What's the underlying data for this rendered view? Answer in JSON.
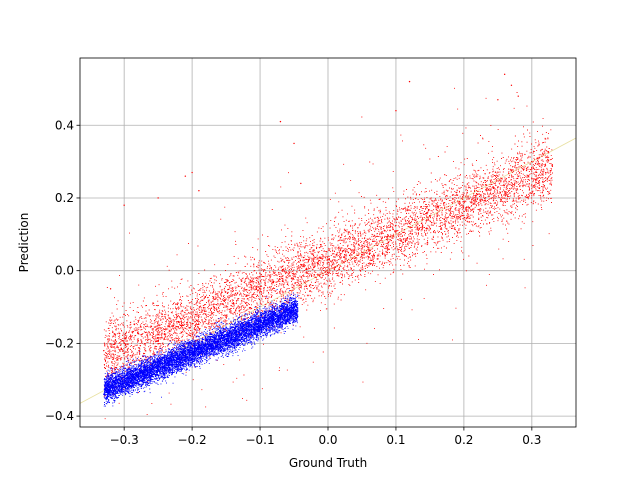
{
  "chart_data": {
    "type": "scatter",
    "xlabel": "Ground Truth",
    "ylabel": "Prediction",
    "xlim": [
      -0.365,
      0.365
    ],
    "ylim": [
      -0.43,
      0.585
    ],
    "grid": true,
    "legend": "none",
    "xticks": [
      -0.3,
      -0.2,
      -0.1,
      0.0,
      0.1,
      0.2,
      0.3
    ],
    "xtick_labels": [
      "−0.3",
      "−0.2",
      "−0.1",
      "0.0",
      "0.1",
      "0.2",
      "0.3"
    ],
    "yticks": [
      -0.4,
      -0.2,
      0.0,
      0.2,
      0.4
    ],
    "ytick_labels": [
      "−0.4",
      "−0.2",
      "0.0",
      "0.2",
      "0.4"
    ],
    "reference_line": {
      "x": [
        -0.365,
        0.365
      ],
      "y": [
        -0.365,
        0.365
      ],
      "color": "#e8e0a0"
    },
    "series": [
      {
        "color": "#ff0000",
        "point_count": 14000,
        "x_range": [
          -0.33,
          0.33
        ],
        "trend": {
          "slope": 0.78,
          "intercept": 0.025
        },
        "spread": 0.045,
        "points": [
          [
            -0.33,
            -0.22
          ],
          [
            -0.3,
            -0.2
          ],
          [
            -0.28,
            -0.17
          ],
          [
            -0.25,
            -0.16
          ],
          [
            -0.22,
            -0.14
          ],
          [
            -0.2,
            -0.13
          ],
          [
            -0.18,
            -0.12
          ],
          [
            -0.15,
            -0.1
          ],
          [
            -0.12,
            -0.07
          ],
          [
            -0.1,
            -0.05
          ],
          [
            -0.08,
            -0.03
          ],
          [
            -0.05,
            -0.01
          ],
          [
            -0.02,
            0.01
          ],
          [
            0.0,
            0.03
          ],
          [
            0.03,
            0.05
          ],
          [
            0.05,
            0.06
          ],
          [
            0.08,
            0.09
          ],
          [
            0.1,
            0.11
          ],
          [
            0.12,
            0.13
          ],
          [
            0.15,
            0.15
          ],
          [
            0.18,
            0.17
          ],
          [
            0.2,
            0.19
          ],
          [
            0.22,
            0.21
          ],
          [
            0.25,
            0.23
          ],
          [
            0.28,
            0.26
          ],
          [
            0.3,
            0.28
          ],
          [
            0.32,
            0.29
          ],
          [
            0.26,
            0.54
          ],
          [
            0.27,
            0.51
          ],
          [
            0.25,
            0.47
          ],
          [
            0.28,
            0.48
          ],
          [
            -0.07,
            0.41
          ],
          [
            -0.2,
            0.27
          ],
          [
            -0.21,
            0.26
          ],
          [
            -0.19,
            0.22
          ],
          [
            -0.05,
            0.35
          ],
          [
            -0.04,
            0.24
          ],
          [
            -0.25,
            0.2
          ],
          [
            -0.3,
            0.18
          ],
          [
            0.1,
            0.44
          ],
          [
            0.12,
            0.52
          ],
          [
            -0.3,
            -0.12
          ],
          [
            -0.32,
            -0.05
          ]
        ]
      },
      {
        "color": "#0000ff",
        "point_count": 9000,
        "x_range": [
          -0.33,
          -0.045
        ],
        "trend": {
          "slope": 0.78,
          "intercept": -0.07
        },
        "spread": 0.018,
        "points": [
          [
            -0.33,
            -0.34
          ],
          [
            -0.32,
            -0.33
          ],
          [
            -0.3,
            -0.31
          ],
          [
            -0.28,
            -0.29
          ],
          [
            -0.26,
            -0.27
          ],
          [
            -0.24,
            -0.26
          ],
          [
            -0.22,
            -0.24
          ],
          [
            -0.2,
            -0.22
          ],
          [
            -0.18,
            -0.2
          ],
          [
            -0.16,
            -0.19
          ],
          [
            -0.14,
            -0.17
          ],
          [
            -0.12,
            -0.16
          ],
          [
            -0.1,
            -0.14
          ],
          [
            -0.08,
            -0.12
          ],
          [
            -0.06,
            -0.11
          ],
          [
            -0.05,
            -0.1
          ]
        ]
      }
    ]
  }
}
